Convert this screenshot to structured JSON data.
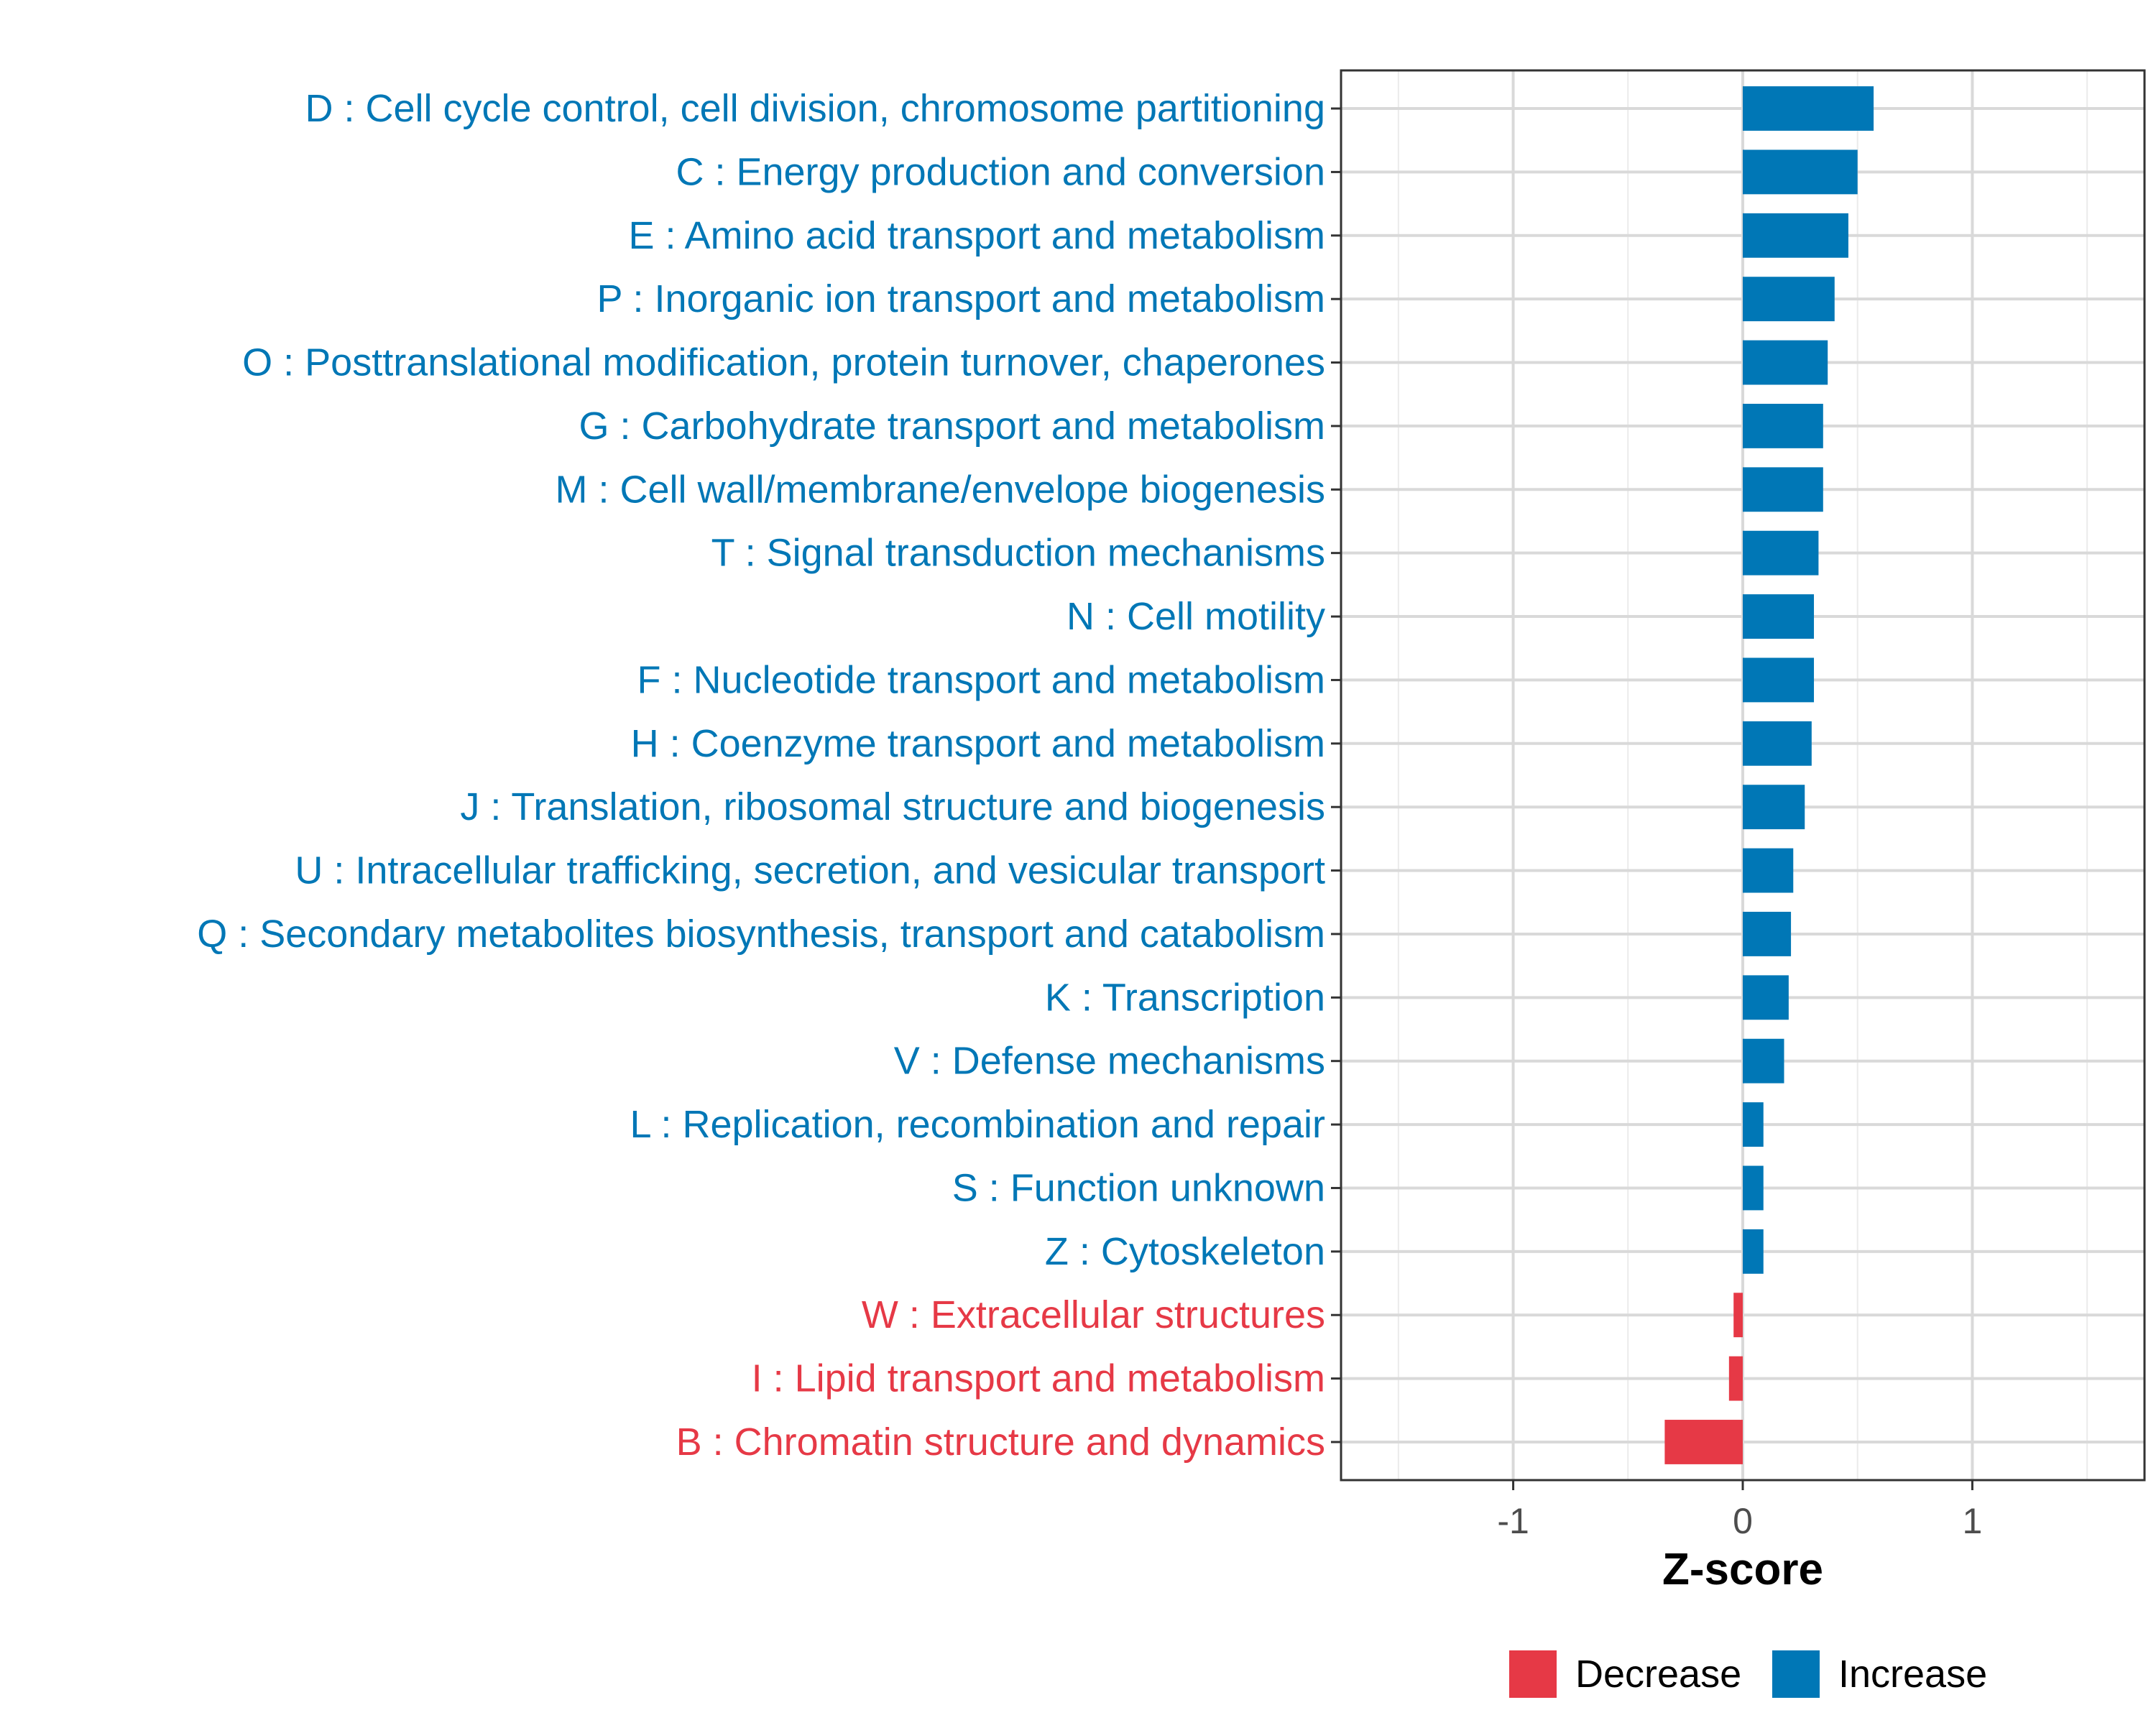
{
  "chart_data": {
    "type": "bar",
    "orientation": "horizontal",
    "xlabel": "Z-score",
    "ylabel": "",
    "xlim": [
      -1.75,
      1.75
    ],
    "x_ticks": [
      -1,
      0,
      1
    ],
    "x_tick_labels": [
      "-1",
      "0",
      "1"
    ],
    "grid": true,
    "categories": [
      "D : Cell cycle control, cell division, chromosome partitioning",
      "C : Energy production and conversion",
      "E : Amino acid transport and metabolism",
      "P : Inorganic ion transport and metabolism",
      "O : Posttranslational modification, protein turnover, chaperones",
      "G : Carbohydrate transport and metabolism",
      "M : Cell wall/membrane/envelope biogenesis",
      "T : Signal transduction mechanisms",
      "N : Cell motility",
      "F : Nucleotide transport and metabolism",
      "H : Coenzyme transport and metabolism",
      "J : Translation, ribosomal structure and biogenesis",
      "U : Intracellular trafficking, secretion, and vesicular transport",
      "Q : Secondary metabolites biosynthesis, transport and catabolism",
      "K : Transcription",
      "V : Defense mechanisms",
      "L : Replication, recombination and repair",
      "S : Function unknown",
      "Z : Cytoskeleton",
      "W : Extracellular structures",
      "I : Lipid transport and metabolism",
      "B : Chromatin structure and dynamics"
    ],
    "values": [
      0.57,
      0.5,
      0.46,
      0.4,
      0.37,
      0.35,
      0.35,
      0.33,
      0.31,
      0.31,
      0.3,
      0.27,
      0.22,
      0.21,
      0.2,
      0.18,
      0.09,
      0.09,
      0.09,
      -0.04,
      -0.06,
      -0.34
    ],
    "groups": [
      "Increase",
      "Increase",
      "Increase",
      "Increase",
      "Increase",
      "Increase",
      "Increase",
      "Increase",
      "Increase",
      "Increase",
      "Increase",
      "Increase",
      "Increase",
      "Increase",
      "Increase",
      "Increase",
      "Increase",
      "Increase",
      "Increase",
      "Decrease",
      "Decrease",
      "Decrease"
    ],
    "legend": {
      "position": "bottom",
      "entries": [
        {
          "name": "Decrease",
          "color": "#e63946"
        },
        {
          "name": "Increase",
          "color": "#0077b6"
        }
      ]
    },
    "colors": {
      "Increase": "#0077b6",
      "Decrease": "#e63946"
    }
  }
}
